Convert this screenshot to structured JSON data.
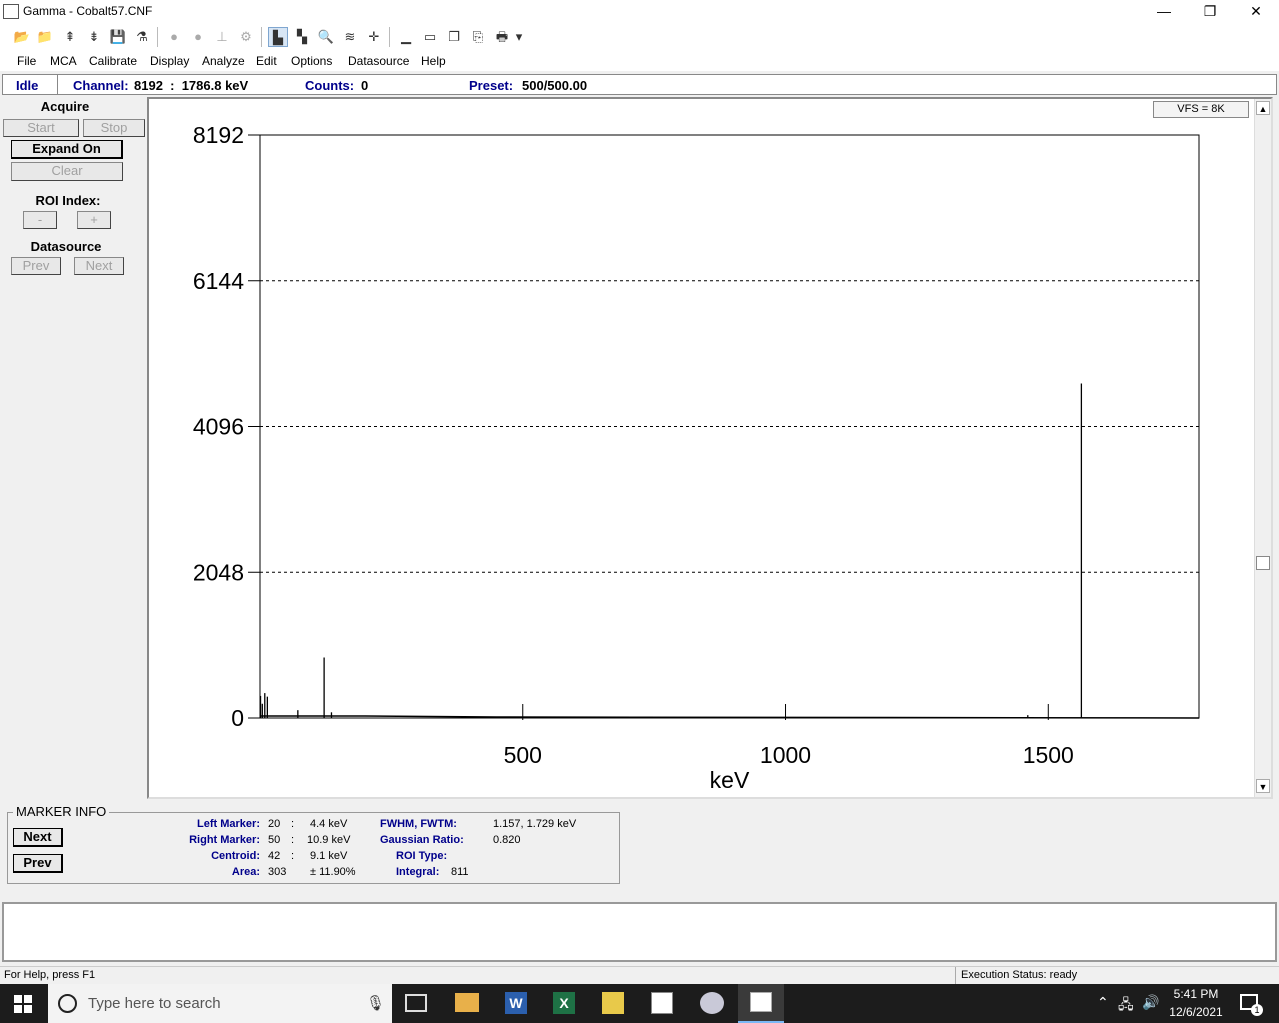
{
  "window": {
    "title": "Gamma - Cobalt57.CNF",
    "minimize": "—",
    "restore": "❐",
    "close": "✕"
  },
  "menus": [
    "File",
    "MCA",
    "Calibrate",
    "Display",
    "Analyze",
    "Edit",
    "Options",
    "Datasource",
    "Help"
  ],
  "status": {
    "state": "Idle",
    "channel_label": "Channel:",
    "channel_value": "8192  :  1786.8 keV",
    "counts_label": "Counts:",
    "counts_value": "0",
    "preset_label": "Preset:",
    "preset_value": "500/500.00"
  },
  "acquire": {
    "heading": "Acquire",
    "start": "Start",
    "stop": "Stop",
    "expand": "Expand On",
    "clear": "Clear",
    "roi_heading": "ROI Index:",
    "roi_minus": "-",
    "roi_plus": "+",
    "ds_heading": "Datasource",
    "prev": "Prev",
    "next": "Next"
  },
  "plot": {
    "vfs": "VFS = 8K",
    "scroll_up": "▲",
    "scroll_down": "▼"
  },
  "chart_data": {
    "type": "line",
    "xlabel": "keV",
    "ylabel": "",
    "xlim": [
      0,
      1786.8
    ],
    "ylim": [
      0,
      8192
    ],
    "x_ticks": [
      500,
      1000,
      1500
    ],
    "y_ticks": [
      0,
      2048,
      4096,
      6144,
      8192
    ],
    "grid": "horizontal dashed",
    "peaks": [
      {
        "x": 1,
        "y": 310
      },
      {
        "x": 4.4,
        "y": 200
      },
      {
        "x": 9.1,
        "y": 350
      },
      {
        "x": 14,
        "y": 300
      },
      {
        "x": 72,
        "y": 110
      },
      {
        "x": 122,
        "y": 850
      },
      {
        "x": 136,
        "y": 80
      },
      {
        "x": 1461,
        "y": 40
      },
      {
        "x": 1563,
        "y": 4700
      }
    ]
  },
  "marker_info": {
    "heading": "MARKER INFO",
    "next": "Next",
    "prev": "Prev",
    "left_marker_label": "Left Marker:",
    "left_marker_ch": "20",
    "left_marker_kev": "4.4 keV",
    "right_marker_label": "Right Marker:",
    "right_marker_ch": "50",
    "right_marker_kev": "10.9 keV",
    "centroid_label": "Centroid:",
    "centroid_ch": "42",
    "centroid_kev": "9.1 keV",
    "area_label": "Area:",
    "area_value": "303",
    "area_err": "± 11.90%",
    "sep": ":",
    "fwhm_label": "FWHM, FWTM:",
    "fwhm_value": "1.157, 1.729 keV",
    "gauss_label": "Gaussian Ratio:",
    "gauss_value": "0.820",
    "roi_type_label": "ROI Type:",
    "roi_type_value": "",
    "integral_label": "Integral:",
    "integral_value": "811"
  },
  "statusbar": {
    "help": "For Help, press F1",
    "exec": "Execution Status: ready"
  },
  "taskbar": {
    "search_placeholder": "Type here to search",
    "time": "5:41 PM",
    "date": "12/6/2021",
    "notifications": "1"
  }
}
